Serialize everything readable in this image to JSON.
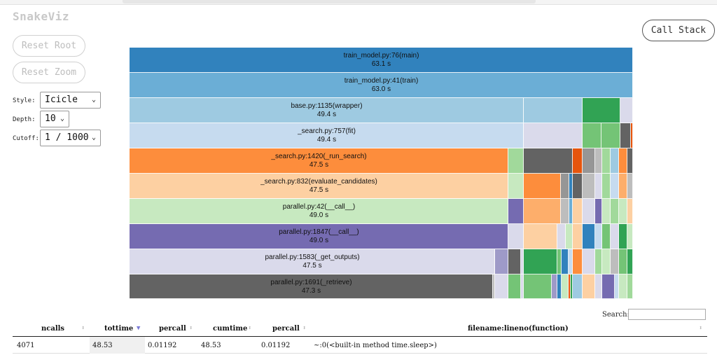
{
  "app": {
    "title": "SnakeViz"
  },
  "buttons": {
    "reset_root": "Reset Root",
    "reset_zoom": "Reset Zoom",
    "call_stack": "Call Stack"
  },
  "controls": {
    "style_label": "Style:",
    "style_value": "Icicle",
    "depth_label": "Depth:",
    "depth_value": "10",
    "cutoff_label": "Cutoff:",
    "cutoff_value": "1 / 1000"
  },
  "icicle": {
    "frames": [
      {
        "name": "train_model.py:76(main)",
        "time": "63.1 s",
        "color": "#3182bd"
      },
      {
        "name": "train_model.py:41(train)",
        "time": "63.0 s",
        "color": "#6baed6"
      },
      {
        "name": "base.py:1135(wrapper)",
        "time": "49.4 s",
        "color": "#9ecae1"
      },
      {
        "name": "_search.py:757(fit)",
        "time": "49.4 s",
        "color": "#c6dbef"
      },
      {
        "name": "_search.py:1420(_run_search)",
        "time": "47.5 s",
        "color": "#fd8d3c"
      },
      {
        "name": "_search.py:832(evaluate_candidates)",
        "time": "47.5 s",
        "color": "#fdd0a2"
      },
      {
        "name": "parallel.py:42(__call__)",
        "time": "49.0 s",
        "color": "#c7e9c0"
      },
      {
        "name": "parallel.py:1847(__call__)",
        "time": "49.0 s",
        "color": "#756bb1"
      },
      {
        "name": "parallel.py:1583(_get_outputs)",
        "time": "47.5 s",
        "color": "#dadaeb"
      },
      {
        "name": "parallel.py:1691(_retrieve)",
        "time": "47.3 s",
        "color": "#636363"
      }
    ]
  },
  "search": {
    "label": "Search:",
    "value": ""
  },
  "table": {
    "columns": [
      "ncalls",
      "tottime",
      "percall",
      "cumtime",
      "percall",
      "filename:lineno(function)"
    ],
    "sort_column": "tottime",
    "rows": [
      {
        "ncalls": "4071",
        "tottime": "48.53",
        "percall": "0.01192",
        "cumtime": "48.53",
        "percall2": "0.01192",
        "location": "~:0(<built-in method time.sleep>)"
      }
    ]
  }
}
